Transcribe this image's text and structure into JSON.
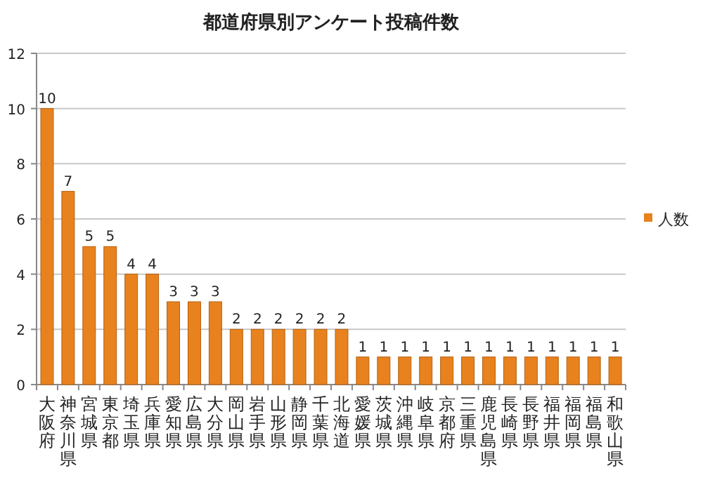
{
  "chart_data": {
    "type": "bar",
    "title": "都道府県別アンケート投稿件数",
    "categories": [
      "大阪府",
      "神奈川県",
      "宮城県",
      "東京都",
      "埼玉県",
      "兵庫県",
      "愛知県",
      "広島県",
      "大分県",
      "岡山県",
      "岩手県",
      "山形県",
      "静岡県",
      "千葉県",
      "北海道",
      "愛媛県",
      "茨城県",
      "沖縄県",
      "岐阜県",
      "京都府",
      "三重県",
      "鹿児島県",
      "長崎県",
      "長野県",
      "福井県",
      "福岡県",
      "福島県",
      "和歌山県"
    ],
    "series": [
      {
        "name": "人数",
        "color": "#e8821e",
        "values": [
          10,
          7,
          5,
          5,
          4,
          4,
          3,
          3,
          3,
          2,
          2,
          2,
          2,
          2,
          2,
          1,
          1,
          1,
          1,
          1,
          1,
          1,
          1,
          1,
          1,
          1,
          1,
          1
        ]
      }
    ],
    "ylim": [
      0,
      12
    ],
    "yticks": [
      0,
      2,
      4,
      6,
      8,
      10,
      12
    ],
    "grid": "y",
    "legend": "right",
    "data_labels": true
  }
}
